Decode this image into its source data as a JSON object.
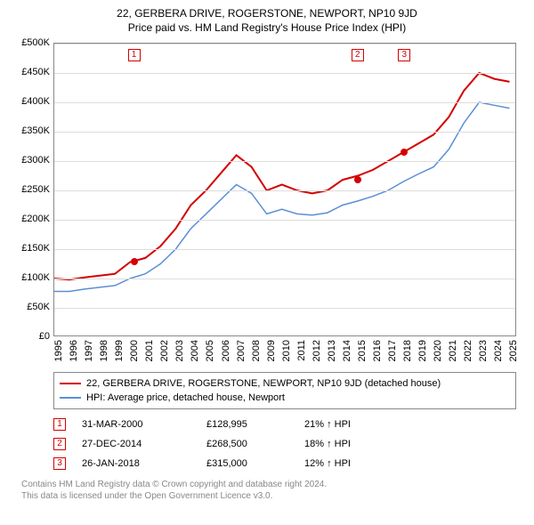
{
  "title": "22, GERBERA DRIVE, ROGERSTONE, NEWPORT, NP10 9JD",
  "subtitle": "Price paid vs. HM Land Registry's House Price Index (HPI)",
  "chart": {
    "type": "line",
    "background_color": "#ffffff",
    "grid_color": "#dddddd",
    "border_color": "#888888",
    "xlim": [
      1995,
      2025.5
    ],
    "ylim": [
      0,
      500000
    ],
    "ytick_step": 50000,
    "ytick_labels": [
      "£0",
      "£50K",
      "£100K",
      "£150K",
      "£200K",
      "£250K",
      "£300K",
      "£350K",
      "£400K",
      "£450K",
      "£500K"
    ],
    "xtick_years": [
      1995,
      1996,
      1997,
      1998,
      1999,
      2000,
      2001,
      2002,
      2003,
      2004,
      2005,
      2006,
      2007,
      2008,
      2009,
      2010,
      2011,
      2012,
      2013,
      2014,
      2015,
      2016,
      2017,
      2018,
      2019,
      2020,
      2021,
      2022,
      2023,
      2024,
      2025
    ],
    "label_fontsize": 11,
    "series": [
      {
        "name": "property",
        "color": "#d40000",
        "width": 2,
        "points": [
          [
            1995,
            100000
          ],
          [
            1996,
            98000
          ],
          [
            1997,
            102000
          ],
          [
            1998,
            105000
          ],
          [
            1999,
            108000
          ],
          [
            2000,
            128000
          ],
          [
            2001,
            135000
          ],
          [
            2002,
            155000
          ],
          [
            2003,
            185000
          ],
          [
            2004,
            225000
          ],
          [
            2005,
            250000
          ],
          [
            2006,
            280000
          ],
          [
            2007,
            310000
          ],
          [
            2008,
            290000
          ],
          [
            2009,
            250000
          ],
          [
            2010,
            260000
          ],
          [
            2011,
            250000
          ],
          [
            2012,
            245000
          ],
          [
            2013,
            250000
          ],
          [
            2014,
            268000
          ],
          [
            2015,
            275000
          ],
          [
            2016,
            285000
          ],
          [
            2017,
            300000
          ],
          [
            2018,
            315000
          ],
          [
            2019,
            330000
          ],
          [
            2020,
            345000
          ],
          [
            2021,
            375000
          ],
          [
            2022,
            420000
          ],
          [
            2023,
            450000
          ],
          [
            2024,
            440000
          ],
          [
            2025,
            435000
          ]
        ]
      },
      {
        "name": "hpi",
        "color": "#5b8fd6",
        "width": 1.5,
        "points": [
          [
            1995,
            78000
          ],
          [
            1996,
            78000
          ],
          [
            1997,
            82000
          ],
          [
            1998,
            85000
          ],
          [
            1999,
            88000
          ],
          [
            2000,
            100000
          ],
          [
            2001,
            108000
          ],
          [
            2002,
            125000
          ],
          [
            2003,
            150000
          ],
          [
            2004,
            185000
          ],
          [
            2005,
            210000
          ],
          [
            2006,
            235000
          ],
          [
            2007,
            260000
          ],
          [
            2008,
            245000
          ],
          [
            2009,
            210000
          ],
          [
            2010,
            218000
          ],
          [
            2011,
            210000
          ],
          [
            2012,
            208000
          ],
          [
            2013,
            212000
          ],
          [
            2014,
            225000
          ],
          [
            2015,
            232000
          ],
          [
            2016,
            240000
          ],
          [
            2017,
            250000
          ],
          [
            2018,
            265000
          ],
          [
            2019,
            278000
          ],
          [
            2020,
            290000
          ],
          [
            2021,
            320000
          ],
          [
            2022,
            365000
          ],
          [
            2023,
            400000
          ],
          [
            2024,
            395000
          ],
          [
            2025,
            390000
          ]
        ]
      }
    ],
    "markers": [
      {
        "num": "1",
        "year": 2000.25,
        "price": 128995,
        "color": "#d40000"
      },
      {
        "num": "2",
        "year": 2014.99,
        "price": 268500,
        "color": "#d40000"
      },
      {
        "num": "3",
        "year": 2018.07,
        "price": 315000,
        "color": "#d40000"
      }
    ]
  },
  "legend": {
    "items": [
      {
        "color": "#d40000",
        "label": "22, GERBERA DRIVE, ROGERSTONE, NEWPORT, NP10 9JD (detached house)"
      },
      {
        "color": "#5b8fd6",
        "label": "HPI: Average price, detached house, Newport"
      }
    ]
  },
  "sales": [
    {
      "num": "1",
      "color": "#d40000",
      "date": "31-MAR-2000",
      "price": "£128,995",
      "pct": "21% ↑ HPI"
    },
    {
      "num": "2",
      "color": "#d40000",
      "date": "27-DEC-2014",
      "price": "£268,500",
      "pct": "18% ↑ HPI"
    },
    {
      "num": "3",
      "color": "#d40000",
      "date": "26-JAN-2018",
      "price": "£315,000",
      "pct": "12% ↑ HPI"
    }
  ],
  "footer": {
    "line1": "Contains HM Land Registry data © Crown copyright and database right 2024.",
    "line2": "This data is licensed under the Open Government Licence v3.0."
  }
}
